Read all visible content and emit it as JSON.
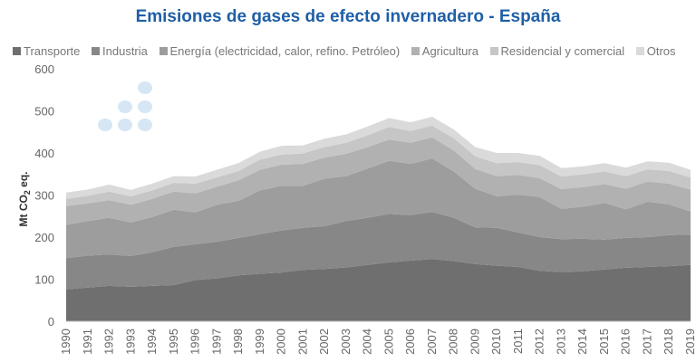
{
  "chart_data": {
    "type": "area",
    "stacked": true,
    "title": "Emisiones de gases de efecto invernadero - España",
    "ylabel_main": "Mt CO",
    "ylabel_sub": "2",
    "ylabel_tail": " eq.",
    "ylim": [
      0,
      600
    ],
    "yticks": [
      0,
      100,
      200,
      300,
      400,
      500,
      600
    ],
    "grid": false,
    "legend_position": "top",
    "x": [
      "1990",
      "1991",
      "1992",
      "1993",
      "1994",
      "1995",
      "1996",
      "1997",
      "1998",
      "1999",
      "2000",
      "2001",
      "2002",
      "2003",
      "2004",
      "2005",
      "2006",
      "2007",
      "2008",
      "2009",
      "2010",
      "2011",
      "2012",
      "2013",
      "2014",
      "2015",
      "2016",
      "2017",
      "2018",
      "2019"
    ],
    "series": [
      {
        "name": "Transporte",
        "color": "#6f6f6f",
        "values": [
          76,
          80,
          84,
          82,
          84,
          86,
          98,
          102,
          109,
          113,
          116,
          122,
          124,
          128,
          134,
          140,
          144,
          148,
          143,
          136,
          132,
          129,
          120,
          117,
          119,
          123,
          127,
          129,
          131,
          134
        ]
      },
      {
        "name": "Industria",
        "color": "#878787",
        "values": [
          74,
          76,
          75,
          73,
          80,
          91,
          85,
          87,
          89,
          94,
          100,
          100,
          102,
          110,
          112,
          115,
          108,
          112,
          103,
          87,
          90,
          82,
          80,
          78,
          77,
          71,
          71,
          71,
          74,
          72
        ]
      },
      {
        "name": "Energía (electricidad, calor, refino. Petróleo)",
        "color": "#9d9d9d",
        "values": [
          79,
          82,
          87,
          80,
          84,
          88,
          76,
          88,
          88,
          104,
          106,
          100,
          113,
          107,
          117,
          126,
          122,
          127,
          110,
          92,
          75,
          90,
          95,
          72,
          76,
          87,
          68,
          84,
          73,
          55
        ]
      },
      {
        "name": "Agricultura",
        "color": "#b1b1b1",
        "values": [
          45,
          42,
          42,
          42,
          43,
          43,
          45,
          43,
          49,
          49,
          50,
          52,
          50,
          53,
          51,
          51,
          50,
          50,
          50,
          47,
          48,
          47,
          45,
          47,
          47,
          45,
          49,
          48,
          49,
          52
        ]
      },
      {
        "name": "Residencial y comercial",
        "color": "#c6c6c6",
        "values": [
          17,
          18,
          20,
          20,
          20,
          21,
          23,
          22,
          22,
          24,
          24,
          25,
          25,
          26,
          28,
          30,
          28,
          28,
          29,
          30,
          31,
          30,
          31,
          30,
          30,
          30,
          30,
          29,
          30,
          29
        ]
      },
      {
        "name": "Otros",
        "color": "#dadada",
        "values": [
          15,
          15,
          17,
          15,
          16,
          16,
          17,
          18,
          19,
          19,
          21,
          19,
          20,
          20,
          21,
          21,
          21,
          21,
          21,
          22,
          24,
          22,
          22,
          20,
          19,
          20,
          20,
          19,
          20,
          18
        ]
      }
    ]
  }
}
